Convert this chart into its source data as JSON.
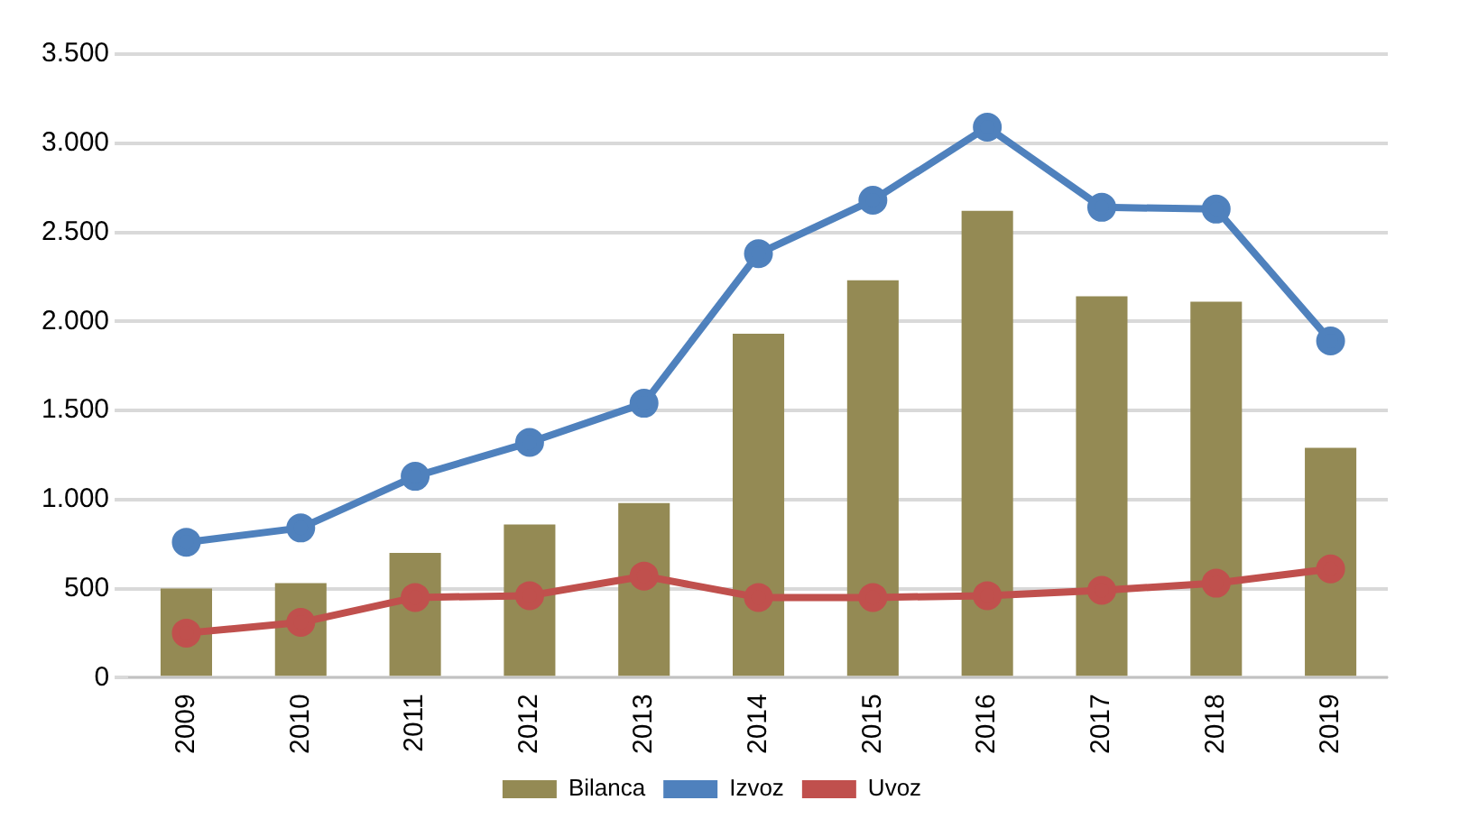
{
  "chart_data": {
    "type": "bar",
    "categories": [
      "2009",
      "2010",
      "2011",
      "2012",
      "2013",
      "2014",
      "2015",
      "2016",
      "2017",
      "2018",
      "2019"
    ],
    "series": [
      {
        "name": "Bilanca",
        "color": "#948a54",
        "values": [
          500,
          530,
          700,
          860,
          980,
          1930,
          2230,
          2620,
          2140,
          2110,
          1290
        ]
      },
      {
        "name": "Izvoz",
        "type": "line",
        "color": "#4f81bd",
        "values": [
          760,
          840,
          1130,
          1320,
          1540,
          2380,
          2680,
          3090,
          2640,
          2630,
          1890
        ]
      },
      {
        "name": "Uvoz",
        "type": "line",
        "color": "#c0504d",
        "values": [
          250,
          310,
          450,
          460,
          570,
          450,
          450,
          460,
          490,
          530,
          610
        ]
      }
    ],
    "ylim": [
      0,
      3500
    ],
    "yticks": [
      {
        "value": 0,
        "label": "0"
      },
      {
        "value": 500,
        "label": "500"
      },
      {
        "value": 1000,
        "label": "1.000"
      },
      {
        "value": 1500,
        "label": "1.500"
      },
      {
        "value": 2000,
        "label": "2.000"
      },
      {
        "value": 2500,
        "label": "2.500"
      },
      {
        "value": 3000,
        "label": "3.000"
      },
      {
        "value": 3500,
        "label": "3.500"
      }
    ],
    "grid": "y",
    "legend": "bottom",
    "marker": "circle"
  }
}
